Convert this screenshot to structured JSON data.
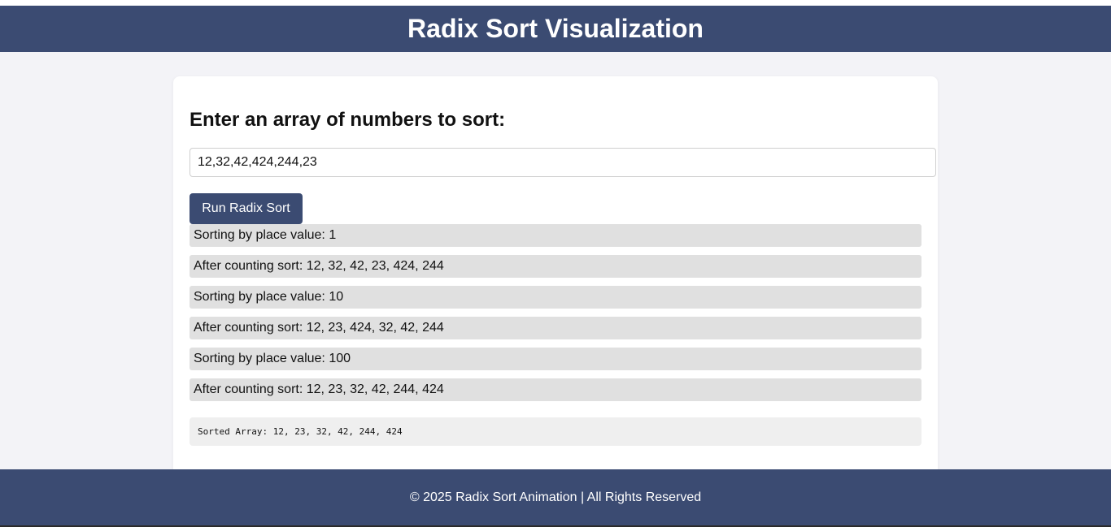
{
  "header": {
    "title": "Radix Sort Visualization"
  },
  "main": {
    "heading": "Enter an array of numbers to sort:",
    "input": {
      "value": "12,32,42,424,244,23",
      "placeholder": ""
    },
    "run_button_label": "Run Radix Sort",
    "steps": [
      "Sorting by place value: 1",
      "After counting sort: 12, 32, 42, 23, 424, 244",
      "Sorting by place value: 10",
      "After counting sort: 12, 23, 424, 32, 42, 244",
      "Sorting by place value: 100",
      "After counting sort: 12, 23, 32, 42, 244, 424"
    ],
    "sorted_result": "Sorted Array: 12, 23, 32, 42, 244, 424"
  },
  "footer": {
    "text": "© 2025 Radix Sort Animation | All Rights Reserved"
  },
  "colors": {
    "primary": "#3b4b72",
    "background": "#f3f3f7",
    "step_background": "#e0e0e0"
  }
}
